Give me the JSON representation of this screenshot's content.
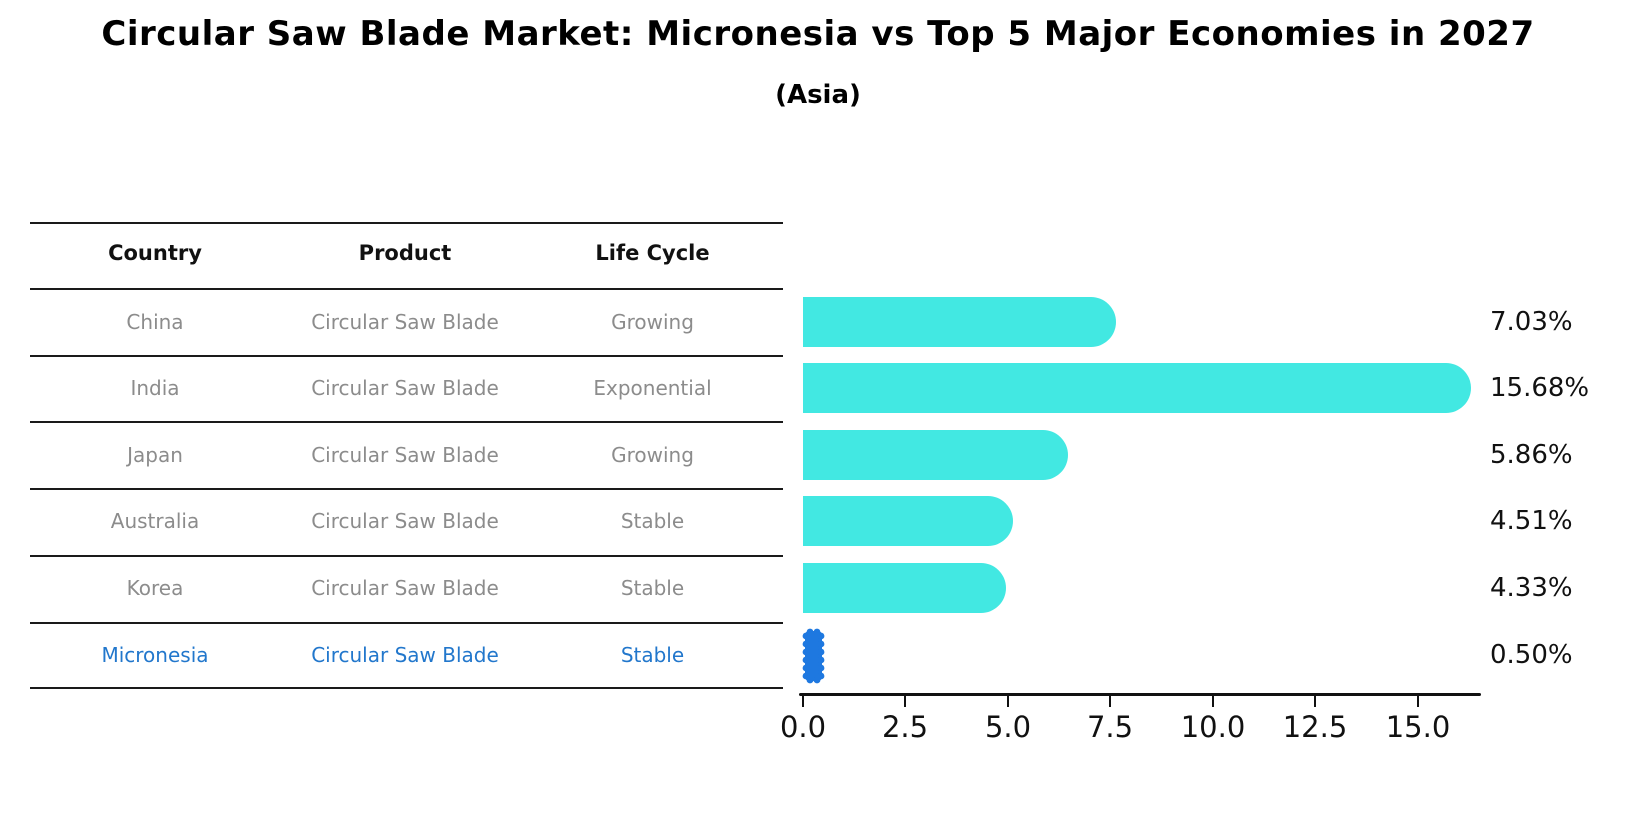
{
  "title": "Circular Saw Blade Market: Micronesia vs Top 5 Major Economies in 2027",
  "subtitle": "(Asia)",
  "table": {
    "headers": {
      "country": "Country",
      "product": "Product",
      "life_cycle": "Life Cycle"
    },
    "rows": [
      {
        "country": "China",
        "product": "Circular Saw Blade",
        "life_cycle": "Growing",
        "highlight": false
      },
      {
        "country": "India",
        "product": "Circular Saw Blade",
        "life_cycle": "Exponential",
        "highlight": false
      },
      {
        "country": "Japan",
        "product": "Circular Saw Blade",
        "life_cycle": "Growing",
        "highlight": false
      },
      {
        "country": "Australia",
        "product": "Circular Saw Blade",
        "life_cycle": "Stable",
        "highlight": false
      },
      {
        "country": "Korea",
        "product": "Circular Saw Blade",
        "life_cycle": "Stable",
        "highlight": false
      },
      {
        "country": "Micronesia",
        "product": "Circular Saw Blade",
        "life_cycle": "Stable",
        "highlight": true
      }
    ]
  },
  "chart_data": {
    "type": "bar",
    "orientation": "horizontal",
    "title": "Circular Saw Blade Market: Micronesia vs Top 5 Major Economies in 2027",
    "subtitle": "(Asia)",
    "categories": [
      "China",
      "India",
      "Japan",
      "Australia",
      "Korea",
      "Micronesia"
    ],
    "values": [
      7.03,
      15.68,
      5.86,
      4.51,
      4.33,
      0.5
    ],
    "value_labels": [
      "7.03%",
      "15.68%",
      "5.86%",
      "4.51%",
      "4.33%",
      "0.50%"
    ],
    "xticks": [
      "0.0",
      "2.5",
      "5.0",
      "7.5",
      "10.0",
      "12.5",
      "15.0"
    ],
    "xlim": [
      0,
      16.5
    ],
    "grid": false,
    "legend": false,
    "bar_color": "#42e8e2",
    "highlight_index": 5,
    "highlight_color": "#1e78e0"
  },
  "colors": {
    "row_text": "#8c8c8c",
    "header_text": "#111111",
    "highlight_text": "#2277cc",
    "axis": "#111111"
  }
}
